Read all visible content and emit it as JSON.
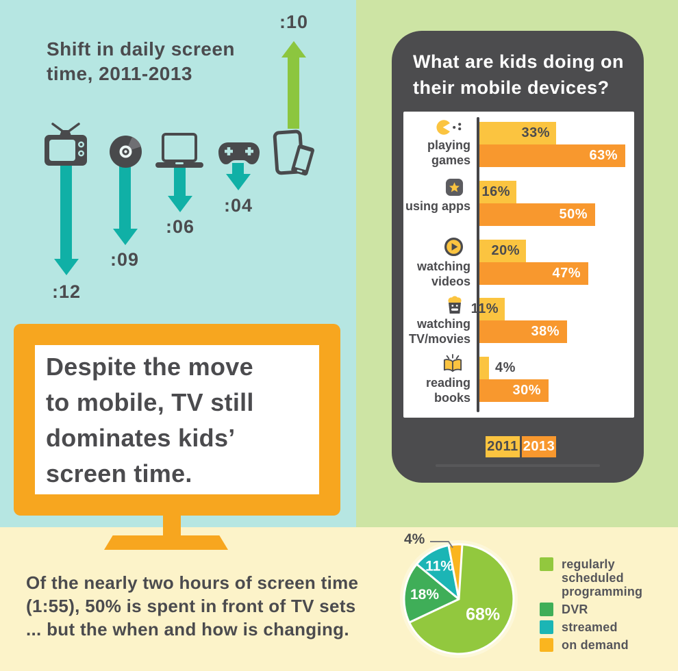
{
  "colors": {
    "background_teal": "#b6e6e2",
    "background_green": "#cde4a4",
    "background_cream": "#fcf3c9",
    "text_dark": "#4b4b4e",
    "arrow_teal": "#10b0a6",
    "arrow_green": "#8cc63f",
    "bar_2011_yellow": "#fbc440",
    "bar_2013_orange": "#f8982e",
    "tv_frame_orange": "#f7a61f",
    "phone_body_dark": "#4c4c4e"
  },
  "left_panel": {
    "title": "Shift in daily screen\ntime, 2011-2013",
    "tv_callout": "Despite the move\nto mobile, TV still\ndominates kids’\nscreen time.",
    "caption": "Of the nearly two hours of screen time\n(1:55), 50% is spent in front of TV sets\n... but the when and how is changing."
  },
  "phone": {
    "title": "What are kids doing on\ntheir mobile devices?"
  },
  "chart_data": [
    {
      "type": "bar",
      "title": "Shift in daily screen time, 2011-2013",
      "categories": [
        "tv",
        "dvd-disc",
        "laptop",
        "game-controller",
        "tablet-phone"
      ],
      "values": [
        -12,
        -9,
        -6,
        -4,
        10
      ],
      "unit": "minutes",
      "value_labels": [
        ":12",
        ":09",
        ":06",
        ":04",
        ":10"
      ],
      "directions": [
        "down",
        "down",
        "down",
        "down",
        "up"
      ]
    },
    {
      "type": "bar",
      "orientation": "horizontal",
      "title": "What are kids doing on their mobile devices?",
      "categories": [
        "playing games",
        "using apps",
        "watching videos",
        "watching TV/movies",
        "reading books"
      ],
      "series": [
        {
          "name": "2011",
          "values": [
            33,
            16,
            20,
            11,
            4
          ],
          "color": "#fbc440"
        },
        {
          "name": "2013",
          "values": [
            63,
            50,
            47,
            38,
            30
          ],
          "color": "#f8982e"
        }
      ],
      "unit": "%",
      "xlim": [
        0,
        70
      ],
      "value_labels": true,
      "legend_position": "bottom",
      "icons": [
        "pacman-icon",
        "star-app-icon",
        "play-video-icon",
        "popcorn-icon",
        "book-icon"
      ]
    },
    {
      "type": "pie",
      "labels": [
        "regularly scheduled programming",
        "DVR",
        "streamed",
        "on demand"
      ],
      "values": [
        68,
        18,
        11,
        4
      ],
      "colors": [
        "#92c83e",
        "#3fae58",
        "#1bb5b5",
        "#fab51f"
      ],
      "unit": "%",
      "start_angle_deg": 0,
      "direction": "clockwise",
      "legend_position": "right"
    }
  ]
}
